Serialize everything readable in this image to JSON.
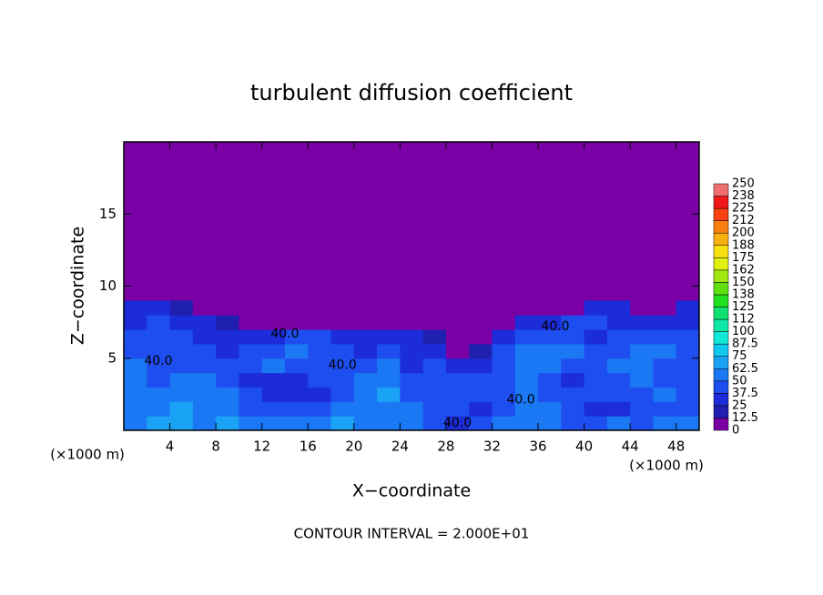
{
  "chart_data": {
    "type": "heatmap",
    "title": "turbulent diffusion coefficient",
    "xlabel": "X−coordinate",
    "ylabel": "Z−coordinate",
    "x_unit_left": "(×1000 m)",
    "x_unit_right": "(×1000 m)",
    "footer": "CONTOUR INTERVAL = 2.000E+01",
    "xlim": [
      0,
      50
    ],
    "ylim": [
      0,
      20
    ],
    "xticks": [
      4,
      8,
      12,
      16,
      20,
      24,
      28,
      32,
      36,
      40,
      44,
      48
    ],
    "yticks": [
      5,
      10,
      15
    ],
    "x": [
      1,
      3,
      5,
      7,
      9,
      11,
      13,
      15,
      17,
      19,
      21,
      23,
      25,
      27,
      29,
      31,
      33,
      35,
      37,
      39,
      41,
      43,
      45,
      47,
      49
    ],
    "y": [
      0.5,
      1.5,
      2.5,
      3.5,
      4.5,
      5.5,
      6.5,
      7.5,
      8.5
    ],
    "z": [
      [
        60,
        65,
        70,
        55,
        65,
        60,
        60,
        55,
        60,
        65,
        60,
        55,
        50,
        40,
        25,
        40,
        55,
        60,
        55,
        45,
        40,
        50,
        40,
        55,
        50
      ],
      [
        55,
        60,
        65,
        60,
        55,
        45,
        45,
        40,
        40,
        50,
        55,
        55,
        50,
        45,
        40,
        35,
        45,
        50,
        55,
        40,
        35,
        35,
        45,
        40,
        45
      ],
      [
        60,
        50,
        60,
        55,
        50,
        40,
        35,
        30,
        30,
        45,
        50,
        65,
        45,
        40,
        40,
        40,
        45,
        55,
        45,
        40,
        40,
        40,
        45,
        50,
        40
      ],
      [
        55,
        45,
        55,
        50,
        45,
        35,
        30,
        30,
        40,
        45,
        55,
        60,
        40,
        40,
        45,
        40,
        45,
        60,
        40,
        35,
        40,
        45,
        50,
        40,
        45
      ],
      [
        50,
        40,
        40,
        45,
        40,
        45,
        55,
        45,
        40,
        40,
        45,
        50,
        35,
        40,
        30,
        35,
        40,
        55,
        50,
        40,
        45,
        50,
        55,
        45,
        40
      ],
      [
        45,
        40,
        40,
        40,
        35,
        40,
        45,
        50,
        45,
        40,
        35,
        40,
        35,
        30,
        0,
        20,
        40,
        50,
        60,
        55,
        45,
        40,
        50,
        55,
        45
      ],
      [
        40,
        40,
        40,
        35,
        35,
        30,
        35,
        40,
        40,
        35,
        30,
        35,
        35,
        15,
        0,
        0,
        30,
        40,
        45,
        40,
        35,
        40,
        45,
        40,
        40
      ],
      [
        35,
        40,
        35,
        30,
        20,
        0,
        0,
        0,
        0,
        0,
        0,
        0,
        0,
        0,
        0,
        0,
        0,
        25,
        35,
        40,
        40,
        35,
        30,
        25,
        35
      ],
      [
        35,
        30,
        20,
        0,
        0,
        0,
        0,
        0,
        0,
        0,
        0,
        0,
        0,
        0,
        0,
        0,
        0,
        0,
        0,
        10,
        25,
        30,
        10,
        0,
        30
      ]
    ],
    "levels": [
      0,
      12.5,
      25,
      37.5,
      50,
      62.5,
      75,
      87.5,
      100,
      112,
      125,
      138,
      150,
      162,
      175,
      188,
      200,
      212,
      225,
      238,
      250
    ],
    "colors": [
      "#7a00a5",
      "#2020b0",
      "#1c2cd8",
      "#1e4ef0",
      "#1a78f4",
      "#1aa2f4",
      "#10c8f0",
      "#10e8d8",
      "#10e8a8",
      "#10e070",
      "#20e020",
      "#60e010",
      "#a0e810",
      "#e0f010",
      "#f8e010",
      "#f8b010",
      "#f88010",
      "#f84010",
      "#f01818",
      "#f07070"
    ],
    "annotations": [
      {
        "text": "40.0",
        "x": 14,
        "y": 6.7
      },
      {
        "text": "40.0",
        "x": 19,
        "y": 4.5
      },
      {
        "text": "40.0",
        "x": 3,
        "y": 4.8
      },
      {
        "text": "40.0",
        "x": 34.5,
        "y": 2.1
      },
      {
        "text": "40.0",
        "x": 29,
        "y": 0.5
      },
      {
        "text": "40.0",
        "x": 37.5,
        "y": 7.2
      }
    ]
  }
}
